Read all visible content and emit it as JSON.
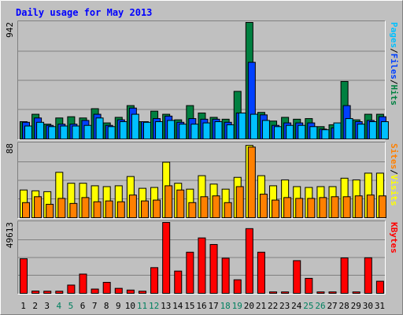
{
  "chart_data": {
    "type": "bar",
    "title": "Daily usage for May 2013",
    "categories": [
      "1",
      "2",
      "3",
      "4",
      "5",
      "6",
      "7",
      "8",
      "9",
      "10",
      "11",
      "12",
      "13",
      "14",
      "15",
      "16",
      "17",
      "18",
      "19",
      "20",
      "21",
      "22",
      "23",
      "24",
      "25",
      "26",
      "27",
      "28",
      "29",
      "30",
      "31"
    ],
    "weekend_days": [
      "4",
      "5",
      "11",
      "12",
      "18",
      "19",
      "25",
      "26"
    ],
    "panels": [
      {
        "id": "hits",
        "max_label": "942",
        "ylim": [
          0,
          942
        ],
        "series": [
          {
            "name": "Hits",
            "color": "#008040",
            "values": [
              140,
              200,
              120,
              170,
              180,
              170,
              245,
              130,
              175,
              270,
              140,
              225,
              200,
              155,
              270,
              210,
              175,
              160,
              385,
              942,
              215,
              145,
              175,
              160,
              165,
              100,
              115,
              465,
              155,
              200,
              200
            ]
          },
          {
            "name": "Files",
            "color": "#0040ff",
            "values": [
              135,
              170,
              110,
              120,
              120,
              150,
              200,
              110,
              155,
              250,
              140,
              165,
              185,
              135,
              165,
              160,
              160,
              135,
              210,
              620,
              195,
              110,
              130,
              130,
              130,
              80,
              90,
              270,
              140,
              150,
              180
            ]
          },
          {
            "name": "Pages",
            "color": "#00c0ff",
            "values": [
              105,
              135,
              100,
              105,
              105,
              110,
              170,
              100,
              140,
              200,
              135,
              140,
              150,
              120,
              120,
              130,
              140,
              115,
              210,
              200,
              150,
              100,
              110,
              110,
              100,
              75,
              130,
              165,
              120,
              140,
              140
            ]
          }
        ],
        "legend": [
          "Pages",
          "Files",
          "Hits"
        ]
      },
      {
        "id": "visits",
        "max_label": "88",
        "ylim": [
          0,
          88
        ],
        "series": [
          {
            "name": "Visits",
            "color": "#ffff00",
            "values": [
              33,
              32,
              31,
              54,
              41,
              41,
              38,
              37,
              38,
              49,
              35,
              36,
              66,
              41,
              34,
              50,
              40,
              34,
              48,
              86,
              50,
              38,
              45,
              37,
              36,
              37,
              37,
              47,
              45,
              53,
              53
            ]
          },
          {
            "name": "Sites",
            "color": "#ff8000",
            "values": [
              18,
              25,
              16,
              23,
              17,
              24,
              19,
              20,
              19,
              27,
              20,
              21,
              38,
              33,
              18,
              25,
              26,
              18,
              37,
              84,
              28,
              21,
              24,
              23,
              23,
              24,
              25,
              25,
              26,
              27,
              26
            ]
          }
        ],
        "legend": [
          "Sites",
          "Visits"
        ]
      },
      {
        "id": "kbytes",
        "max_label": "49613",
        "ylim": [
          0,
          49613
        ],
        "series": [
          {
            "name": "KBytes",
            "color": "#ff0000",
            "values": [
              24200,
              1600,
              1500,
              1500,
              5800,
              13500,
              3000,
              7700,
              3500,
              2300,
              1500,
              18000,
              49613,
              15600,
              28800,
              38800,
              34200,
              24600,
              9500,
              45300,
              28800,
              1000,
              1000,
              22900,
              10500,
              1000,
              1000,
              24800,
              1000,
              24900,
              8500
            ]
          }
        ],
        "legend": [
          "KBytes"
        ]
      }
    ]
  }
}
